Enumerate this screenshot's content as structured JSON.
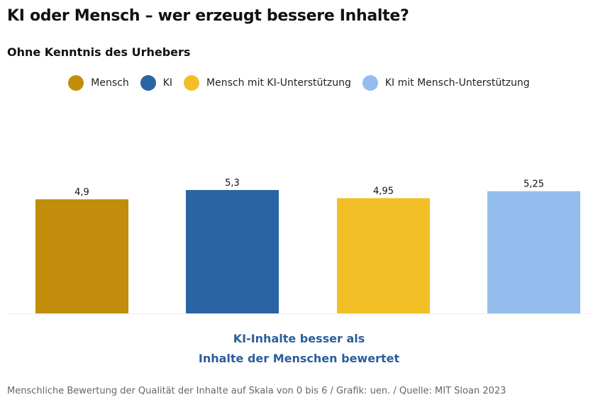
{
  "title": "KI oder Mensch – wer erzeugt bessere Inhalte?",
  "subtitle": "Ohne Kenntnis des Urhebers",
  "note": {
    "line1": "KI-Inhalte besser als",
    "line2": "Inhalte der Menschen bewertet"
  },
  "footer": "Menschliche Bewertung der Qualität der Inhalte auf Skala von 0 bis 6 / Grafik: uen. / Quelle: MIT Sloan 2023",
  "chart_data": {
    "type": "bar",
    "categories": [
      "Mensch",
      "KI",
      "Mensch mit KI-Unterstützung",
      "KI mit Mensch-Unterstützung"
    ],
    "values": [
      4.9,
      5.3,
      4.95,
      5.25
    ],
    "value_labels": [
      "4,9",
      "5,3",
      "4,95",
      "5,25"
    ],
    "colors": [
      "#c18d0a",
      "#2a64a4",
      "#f2bf26",
      "#94bdee"
    ],
    "ylim": [
      0,
      6
    ],
    "grid": false,
    "legend": "top-center"
  }
}
